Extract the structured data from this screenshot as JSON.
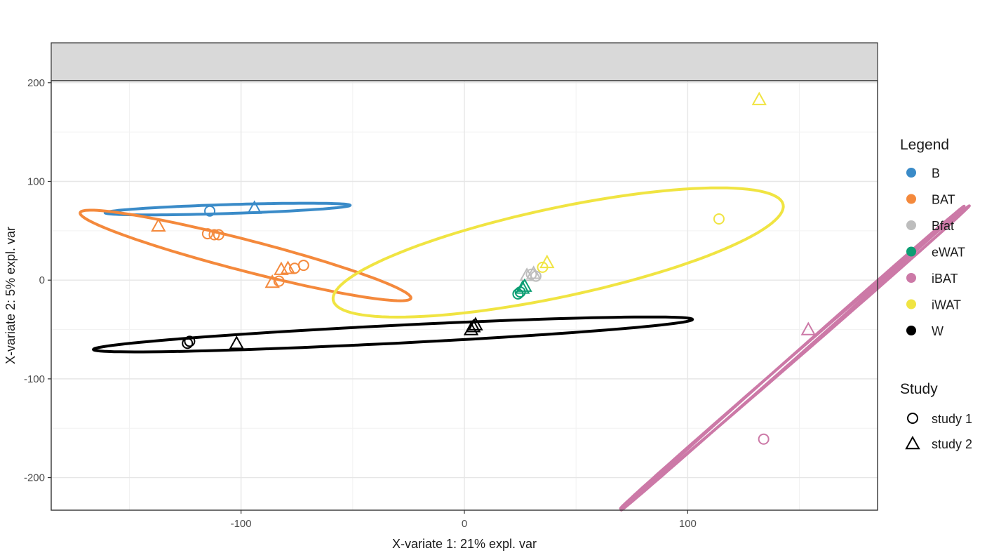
{
  "chart_data": {
    "type": "scatter",
    "xlabel": "X-variate 1: 21% expl. var",
    "ylabel": "X-variate 2: 5% expl. var",
    "xlim": [
      -185,
      185
    ],
    "ylim": [
      -233,
      202
    ],
    "x_ticks": [
      -100,
      0,
      100
    ],
    "y_ticks": [
      200,
      100,
      0,
      -100,
      -200
    ],
    "grid": true,
    "legend_placement": "right",
    "colors": {
      "B": "#3a8bc8",
      "BAT": "#f4893c",
      "Bfat": "#bdbdbd",
      "eWAT": "#0b9e73",
      "iBAT": "#cc79a7",
      "iWAT": "#f0e442",
      "W": "#000000"
    },
    "legend": {
      "title": "Legend",
      "entries": [
        "B",
        "BAT",
        "Bfat",
        "eWAT",
        "iBAT",
        "iWAT",
        "W"
      ]
    },
    "shape_legend": {
      "title": "Study",
      "entries": [
        {
          "label": "study 1",
          "shape": "circle"
        },
        {
          "label": "study 2",
          "shape": "triangle"
        }
      ]
    },
    "series": [
      {
        "name": "B",
        "points": [
          {
            "x": -114,
            "y": 70,
            "study": 1
          },
          {
            "x": -94,
            "y": 73,
            "study": 2
          }
        ]
      },
      {
        "name": "BAT",
        "points": [
          {
            "x": -137,
            "y": 55,
            "study": 2
          },
          {
            "x": -115,
            "y": 47,
            "study": 1
          },
          {
            "x": -112,
            "y": 46,
            "study": 1
          },
          {
            "x": -110,
            "y": 46,
            "study": 1
          },
          {
            "x": -82,
            "y": 11,
            "study": 2
          },
          {
            "x": -79,
            "y": 12,
            "study": 2
          },
          {
            "x": -76,
            "y": 12,
            "study": 1
          },
          {
            "x": -72,
            "y": 15,
            "study": 1
          },
          {
            "x": -86,
            "y": -2,
            "study": 2
          },
          {
            "x": -83,
            "y": -1,
            "study": 1
          }
        ]
      },
      {
        "name": "Bfat",
        "points": [
          {
            "x": 28,
            "y": 5,
            "study": 2
          },
          {
            "x": 30,
            "y": 6,
            "study": 1
          },
          {
            "x": 32,
            "y": 4,
            "study": 1
          },
          {
            "x": 31,
            "y": 7,
            "study": 2
          }
        ]
      },
      {
        "name": "eWAT",
        "points": [
          {
            "x": 25,
            "y": -12,
            "study": 1
          },
          {
            "x": 26,
            "y": -8,
            "study": 2
          },
          {
            "x": 24,
            "y": -14,
            "study": 1
          },
          {
            "x": 27,
            "y": -6,
            "study": 2
          }
        ]
      },
      {
        "name": "iBAT",
        "points": [
          {
            "x": 154,
            "y": -50,
            "study": 2
          },
          {
            "x": 134,
            "y": -161,
            "study": 1
          }
        ]
      },
      {
        "name": "iWAT",
        "points": [
          {
            "x": 132,
            "y": 183,
            "study": 2
          },
          {
            "x": 114,
            "y": 62,
            "study": 1
          },
          {
            "x": 37,
            "y": 18,
            "study": 2
          },
          {
            "x": 35,
            "y": 13,
            "study": 1
          }
        ]
      },
      {
        "name": "W",
        "points": [
          {
            "x": -124,
            "y": -64,
            "study": 1
          },
          {
            "x": -123,
            "y": -62,
            "study": 1
          },
          {
            "x": -102,
            "y": -64,
            "study": 2
          },
          {
            "x": 4,
            "y": -47,
            "study": 2
          },
          {
            "x": 5,
            "y": -45,
            "study": 2
          },
          {
            "x": 3,
            "y": -50,
            "study": 2
          }
        ]
      }
    ],
    "ellipses": [
      {
        "group": "B",
        "cx": -106,
        "cy": 72,
        "rx": 55,
        "ry": 4.5,
        "angle_deg": 4
      },
      {
        "group": "BAT",
        "cx": -98,
        "cy": 25,
        "rx": 86,
        "ry": 14,
        "angle_deg": -31
      },
      {
        "group": "iWAT",
        "cx": 42,
        "cy": 28,
        "rx": 113,
        "ry": 41,
        "angle_deg": 29
      },
      {
        "group": "W",
        "cx": -32,
        "cy": -55,
        "rx": 135,
        "ry": 9,
        "angle_deg": 6.5
      },
      {
        "group": "iBAT",
        "cx": 148,
        "cy": -78,
        "rx": 172,
        "ry": 1.6,
        "angle_deg": 63
      },
      {
        "group": "iBAT",
        "cx": 147,
        "cy": -79,
        "rx": 172,
        "ry": 1.3,
        "angle_deg": 63.5
      }
    ]
  }
}
